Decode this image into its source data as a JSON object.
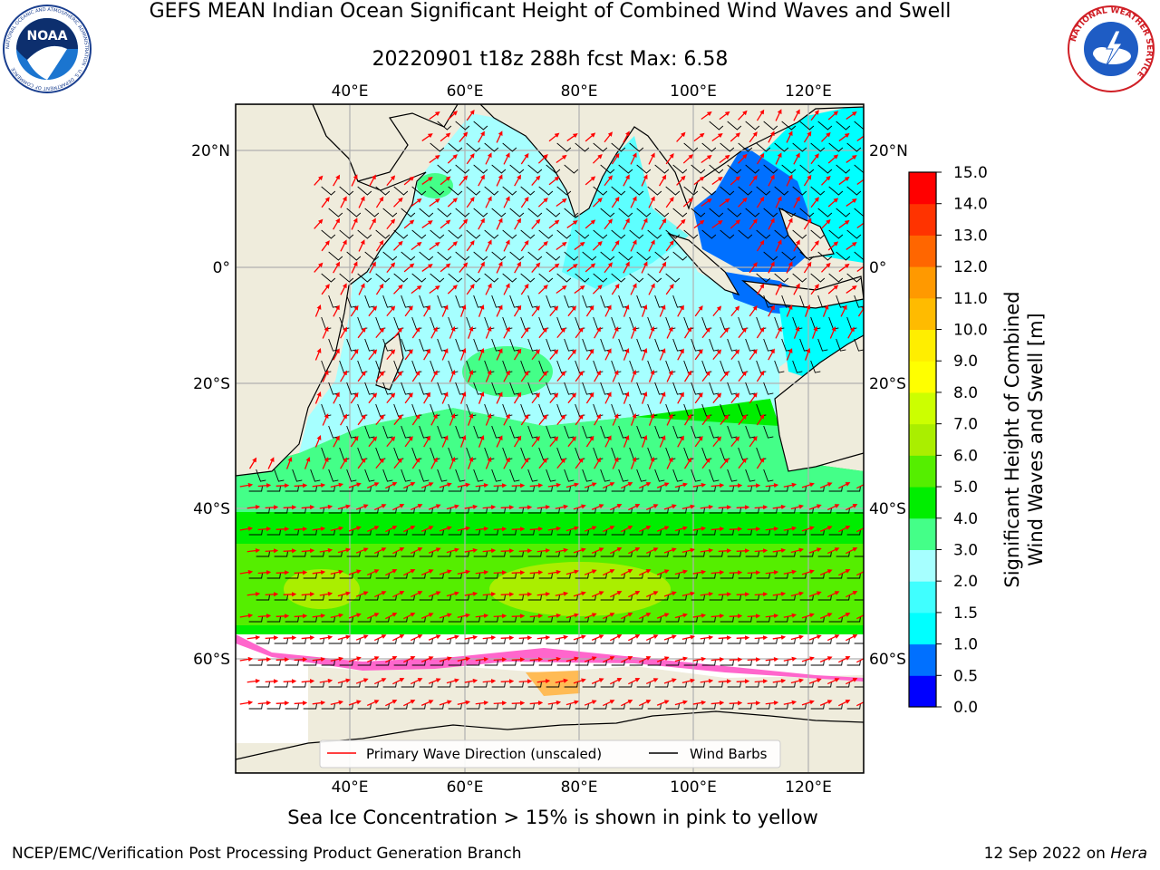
{
  "title_line1": "GEFS MEAN Indian Ocean Significant Height of Combined Wind Waves and Swell",
  "title_line2": "20220901 t18z 288h fcst   Max: 6.58",
  "map": {
    "lon_labels": [
      "40°E",
      "60°E",
      "80°E",
      "100°E",
      "120°E"
    ],
    "lon_values": [
      40,
      60,
      80,
      100,
      120
    ],
    "lat_labels": [
      "20°N",
      "0°",
      "20°S",
      "40°S",
      "60°S"
    ],
    "lat_values": [
      20,
      0,
      -20,
      -40,
      -60
    ],
    "extent": {
      "lon_min": 20,
      "lon_max": 130,
      "lat_min": -73,
      "lat_max": 28
    },
    "land_color": "#efecdc",
    "grid": true
  },
  "colorbar": {
    "title_line1": "Significant Height of Combined",
    "title_line2": "Wind Waves and Swell [m]",
    "tick_labels": [
      "0.0",
      "0.5",
      "1.0",
      "1.5",
      "2.0",
      "3.0",
      "4.0",
      "5.0",
      "6.0",
      "7.0",
      "8.0",
      "9.0",
      "10.0",
      "11.0",
      "12.0",
      "13.0",
      "14.0",
      "15.0"
    ],
    "colors": [
      "#0000ff",
      "#0070ff",
      "#00ffff",
      "#40ffff",
      "#a6ffff",
      "#44ff88",
      "#00ee00",
      "#55ee00",
      "#aaee00",
      "#ccff00",
      "#ffff00",
      "#ffee00",
      "#ffbb00",
      "#ff9900",
      "#ff6600",
      "#ff3300",
      "#ff0000"
    ]
  },
  "legend": {
    "primary_wave": "Primary Wave Direction (unscaled)",
    "wind_barbs": "Wind Barbs",
    "primary_color": "#ff0000",
    "barb_color": "#000000"
  },
  "subtitle": "Sea Ice Concentration > 15% is shown in pink to yellow",
  "footer_left": "NCEP/EMC/Verification Post Processing Product Generation Branch",
  "footer_date": "12 Sep 2022 on",
  "footer_host": "Hera",
  "logos": {
    "noaa_text": "NOAA",
    "noaa_ring": "NATIONAL OCEANIC AND ATMOSPHERIC ADMINISTRATION · U.S. DEPARTMENT OF COMMERCE",
    "nws_ring": "NATIONAL WEATHER SERVICE"
  }
}
